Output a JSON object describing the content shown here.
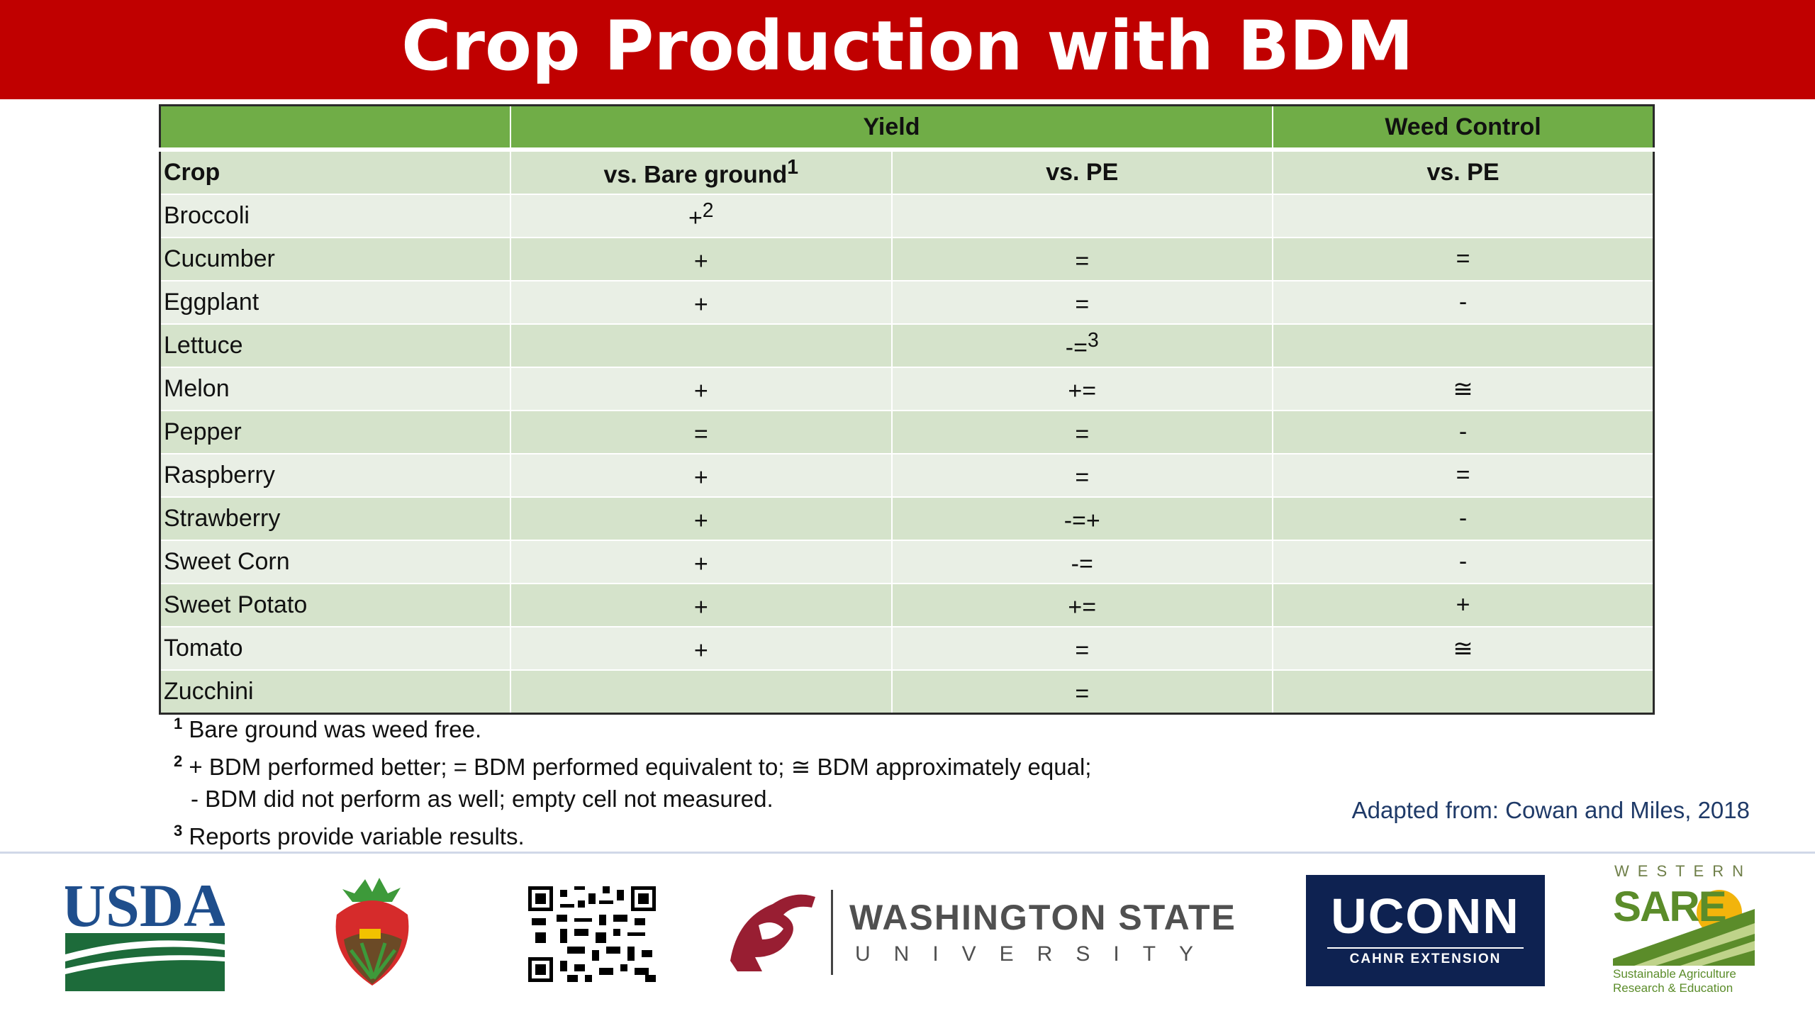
{
  "title": "Crop Production with BDM",
  "table": {
    "group_headers": {
      "yield": "Yield",
      "weed_control": "Weed Control"
    },
    "sub_headers": {
      "crop": "Crop",
      "bare": "vs. Bare ground",
      "bare_sup": "1",
      "pe": "vs. PE",
      "weed_pe": "vs. PE"
    },
    "rows": [
      {
        "crop": "Broccoli",
        "bare": "+",
        "bare_sup": "2",
        "pe": "",
        "pe_sup": "",
        "weed": ""
      },
      {
        "crop": "Cucumber",
        "bare": "+",
        "bare_sup": "",
        "pe": "=",
        "pe_sup": "",
        "weed": "="
      },
      {
        "crop": "Eggplant",
        "bare": "+",
        "bare_sup": "",
        "pe": "=",
        "pe_sup": "",
        "weed": "-"
      },
      {
        "crop": "Lettuce",
        "bare": "",
        "bare_sup": "",
        "pe": "-=",
        "pe_sup": "3",
        "weed": ""
      },
      {
        "crop": "Melon",
        "bare": "+",
        "bare_sup": "",
        "pe": "+=",
        "pe_sup": "",
        "weed": "≅"
      },
      {
        "crop": "Pepper",
        "bare": "=",
        "bare_sup": "",
        "pe": "=",
        "pe_sup": "",
        "weed": "-"
      },
      {
        "crop": "Raspberry",
        "bare": "+",
        "bare_sup": "",
        "pe": "=",
        "pe_sup": "",
        "weed": "="
      },
      {
        "crop": "Strawberry",
        "bare": "+",
        "bare_sup": "",
        "pe": "-=+",
        "pe_sup": "",
        "weed": "-"
      },
      {
        "crop": "Sweet Corn",
        "bare": "+",
        "bare_sup": "",
        "pe": "-=",
        "pe_sup": "",
        "weed": "-"
      },
      {
        "crop": "Sweet Potato",
        "bare": "+",
        "bare_sup": "",
        "pe": "+=",
        "pe_sup": "",
        "weed": "+"
      },
      {
        "crop": "Tomato",
        "bare": "+",
        "bare_sup": "",
        "pe": "=",
        "pe_sup": "",
        "weed": "≅"
      },
      {
        "crop": "Zucchini",
        "bare": "",
        "bare_sup": "",
        "pe": "=",
        "pe_sup": "",
        "weed": ""
      }
    ]
  },
  "footnotes": [
    {
      "mark": "1",
      "text": "Bare ground was weed free."
    },
    {
      "mark": "2",
      "text": "+ BDM performed better; = BDM performed equivalent to; ≅ BDM approximately equal;"
    },
    {
      "mark": "",
      "text": "- BDM did not perform as well; empty cell not measured."
    },
    {
      "mark": "3",
      "text": "Reports provide variable results."
    }
  ],
  "source": "Adapted from: Cowan and Miles, 2018",
  "logos": {
    "usda": "USDA",
    "wsu_line1": "WASHINGTON STATE",
    "wsu_line2": "UNIVERSITY",
    "uconn": "UCONN",
    "uconn_sub": "CAHNR EXTENSION",
    "sare_top": "WESTERN",
    "sare_main": "SARE",
    "sare_sub1": "Sustainable Agriculture",
    "sare_sub2": "Research & Education"
  },
  "colors": {
    "title_bg": "#c00000",
    "header_green": "#70ad47",
    "row_dark": "#d5e3cb",
    "row_light": "#e9efe5",
    "uconn_navy": "#0e2251",
    "usda_blue": "#1f4e8c",
    "usda_green": "#1d6b3a"
  }
}
